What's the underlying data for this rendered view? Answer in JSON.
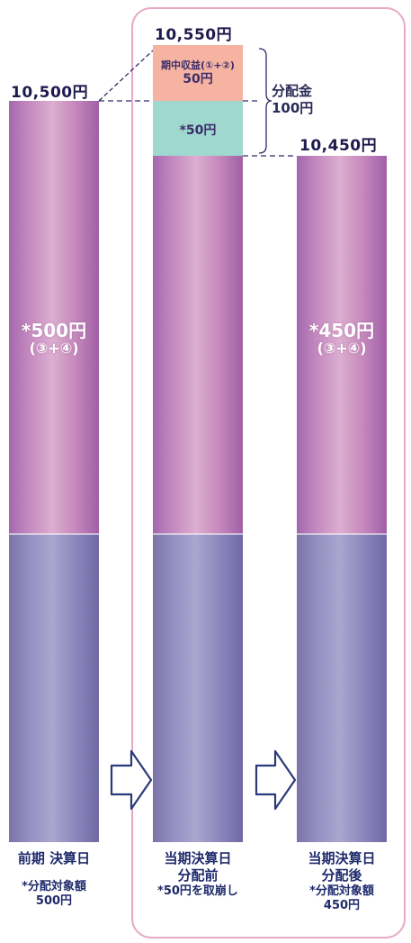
{
  "bars": {
    "prev": {
      "price_label": "10,500円",
      "inner_value": "*500円",
      "inner_note": "(③+④)",
      "caption_title": "前期 決算日",
      "caption_note1": "*分配対象額",
      "caption_note2": "500円"
    },
    "current_before": {
      "price_label": "10,550円",
      "income_label1": "期中収益(①+②)",
      "income_label2": "50円",
      "drawdown_label": "*50円",
      "caption_title1": "当期決算日",
      "caption_title2": "分配前",
      "caption_note": "*50円を取崩し"
    },
    "current_after": {
      "price_label": "10,450円",
      "inner_value": "*450円",
      "inner_note": "(③+④)",
      "caption_title1": "当期決算日",
      "caption_title2": "分配後",
      "caption_note1": "*分配対象額",
      "caption_note2": "450円"
    }
  },
  "distribution": {
    "label": "分配金",
    "amount": "100円"
  },
  "colors": {
    "upper_segment": "#c489bf",
    "lower_segment": "#938fc1",
    "income_box": "#f6b3a1",
    "drawdown_box": "#9fd8cf",
    "frame": "#e7a9c6",
    "text_dark": "#1f1a4d"
  },
  "icons": [
    "arrow-right-icon",
    "arrow-right-icon",
    "brace-icon"
  ]
}
